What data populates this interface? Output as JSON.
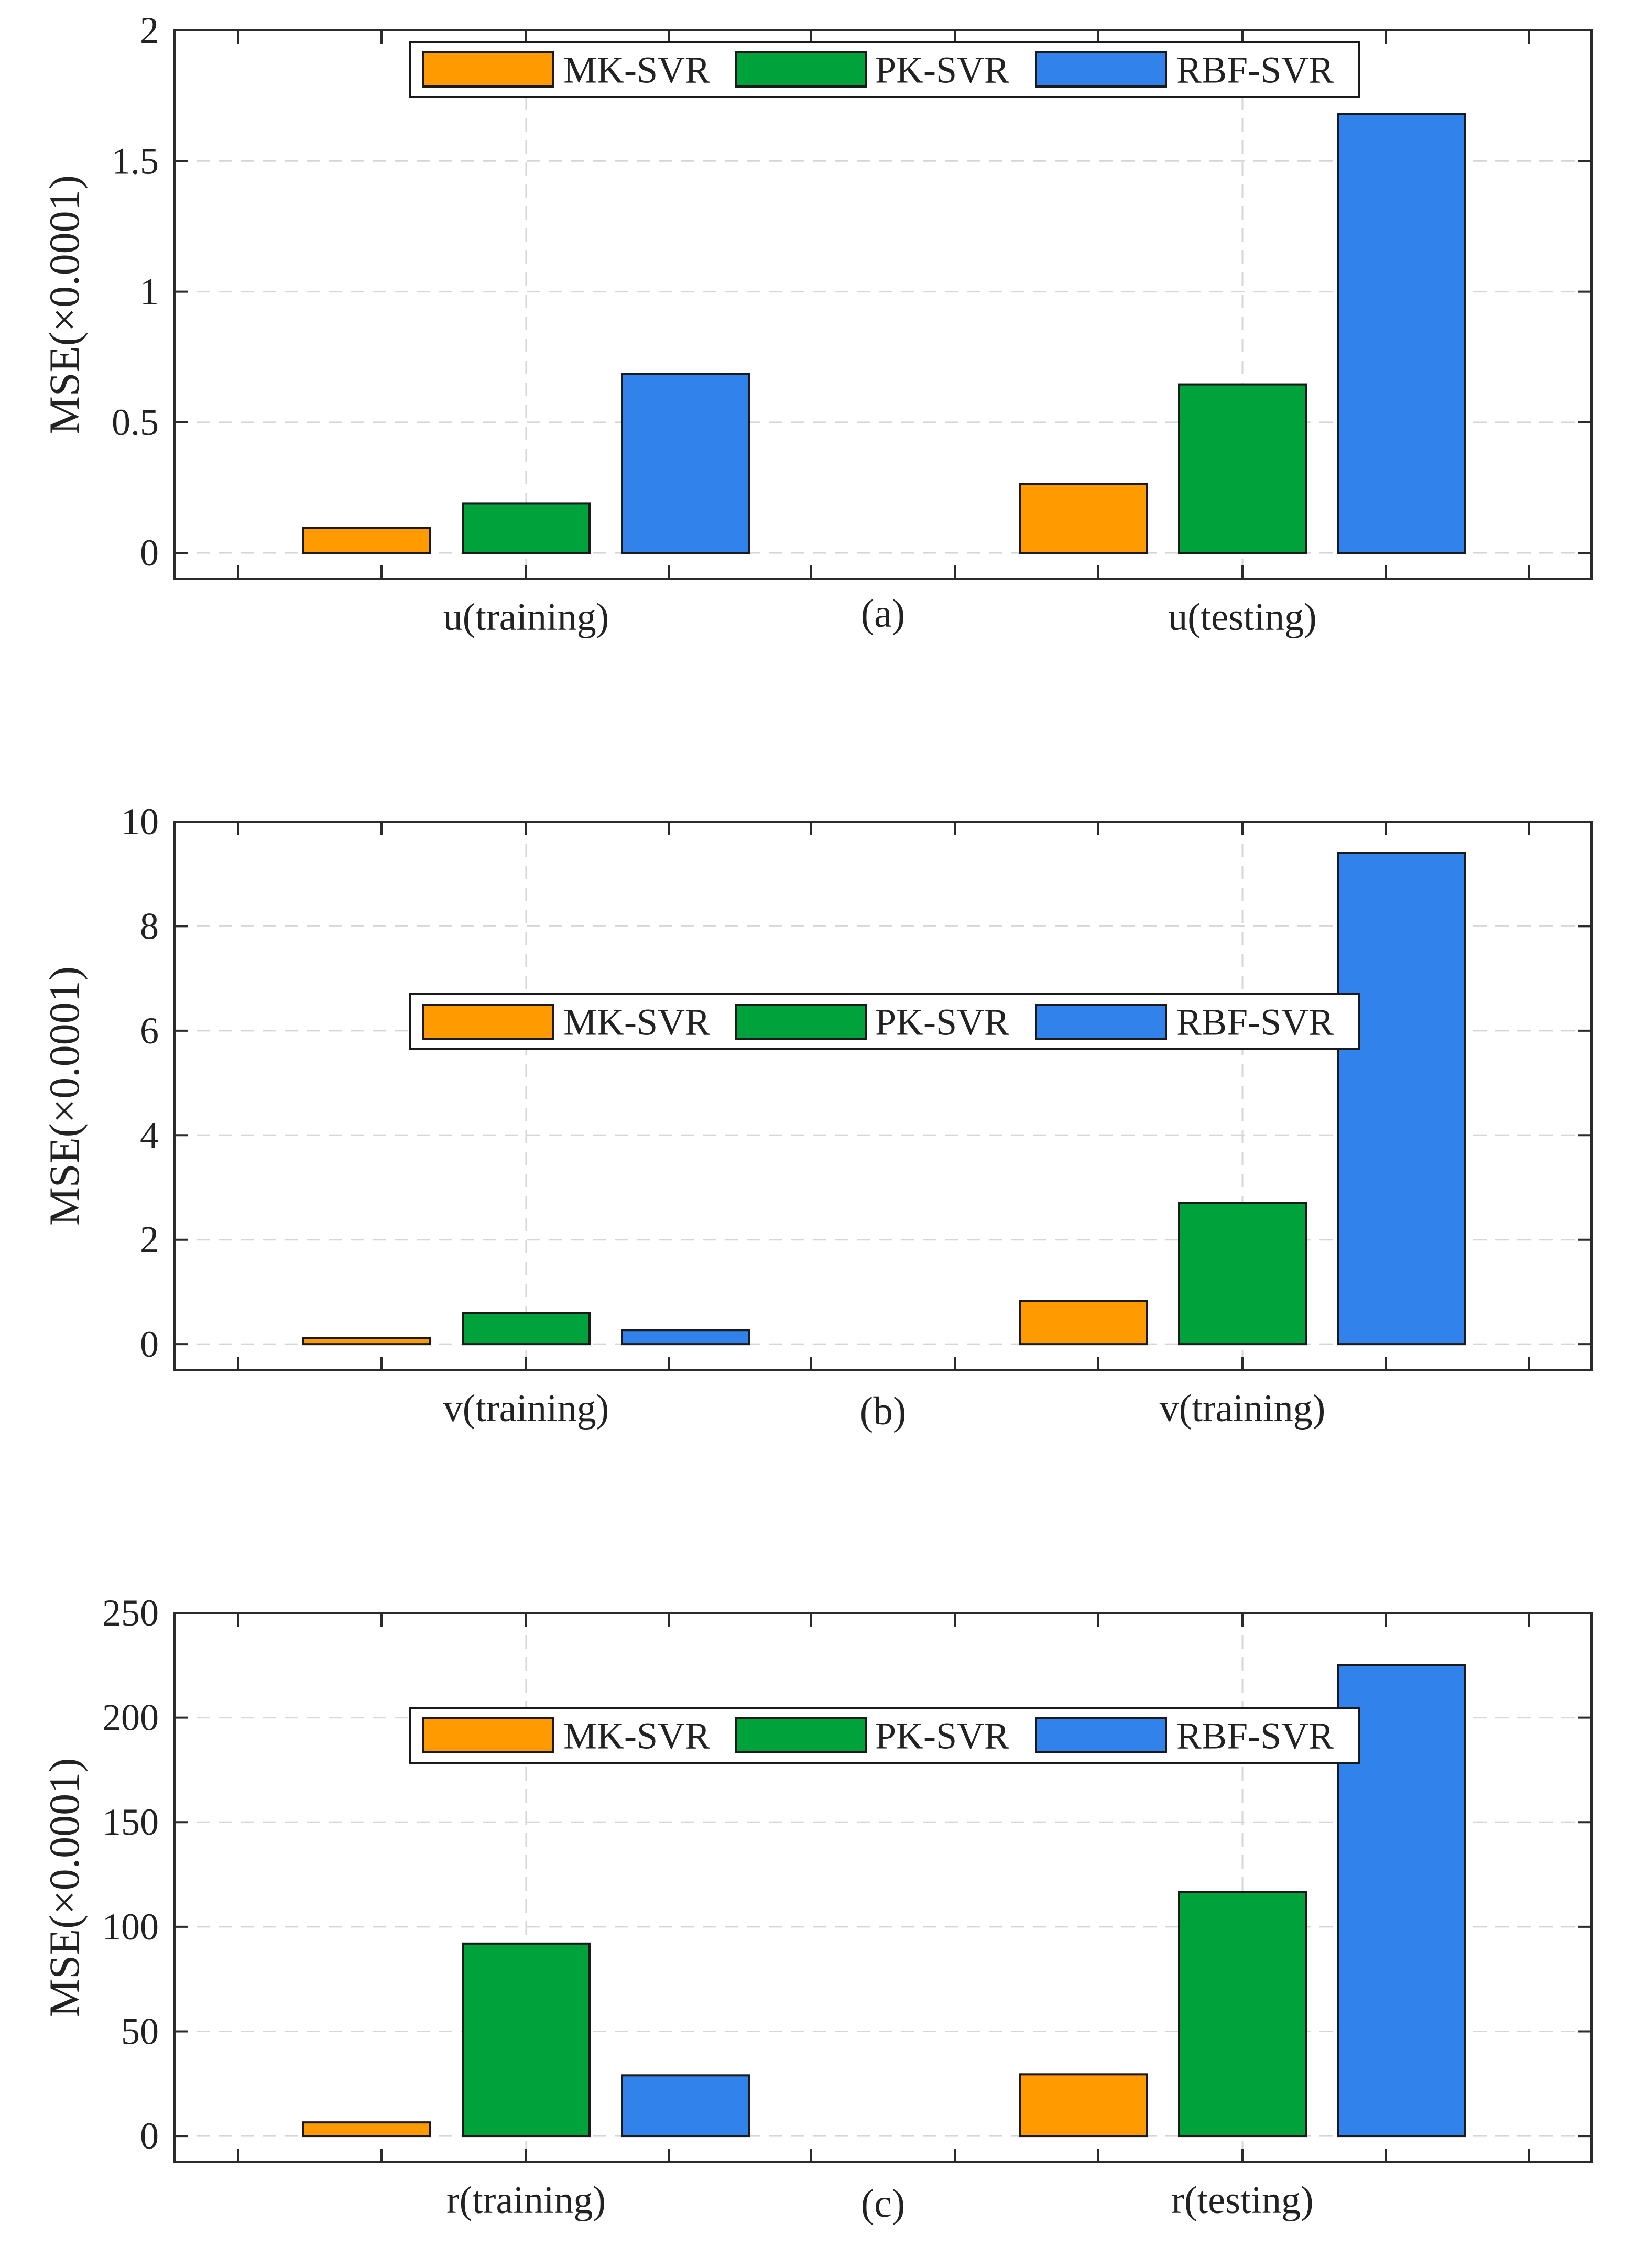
{
  "colors": {
    "MK-SVR": "#ff9a00",
    "PK-SVR": "#00a23b",
    "RBF-SVR": "#3182ea",
    "axis": "#2b2b2b",
    "grid": "#d6d6d6"
  },
  "chart_data": [
    {
      "type": "bar",
      "panel_label": "(a)",
      "categories": [
        "u(training)",
        "u(testing)"
      ],
      "series": [
        {
          "name": "MK-SVR",
          "values": [
            0.095,
            0.265
          ]
        },
        {
          "name": "PK-SVR",
          "values": [
            0.19,
            0.645
          ]
        },
        {
          "name": "RBF-SVR",
          "values": [
            0.685,
            1.68
          ]
        }
      ],
      "ylabel": "MSE(×0.0001)",
      "xlabel": "",
      "ylim": [
        -0.1,
        2
      ],
      "yticks": [
        0,
        0.5,
        1,
        1.5,
        2
      ],
      "ytick_labels": [
        "0",
        "0.5",
        "1",
        "1.5",
        "2"
      ],
      "grid": true,
      "legend": {
        "entries": [
          "MK-SVR",
          "PK-SVR",
          "RBF-SVR"
        ],
        "placement": "top-center"
      }
    },
    {
      "type": "bar",
      "panel_label": "(b)",
      "categories": [
        "v(training)",
        "v(training)"
      ],
      "series": [
        {
          "name": "MK-SVR",
          "values": [
            0.12,
            0.83
          ]
        },
        {
          "name": "PK-SVR",
          "values": [
            0.6,
            2.7
          ]
        },
        {
          "name": "RBF-SVR",
          "values": [
            0.27,
            9.4
          ]
        }
      ],
      "ylabel": "MSE(×0.0001)",
      "xlabel": "",
      "ylim": [
        -0.5,
        10
      ],
      "yticks": [
        0,
        2,
        4,
        6,
        8,
        10
      ],
      "ytick_labels": [
        "0",
        "2",
        "4",
        "6",
        "8",
        "10"
      ],
      "grid": true,
      "legend": {
        "entries": [
          "MK-SVR",
          "PK-SVR",
          "RBF-SVR"
        ],
        "placement": "center"
      }
    },
    {
      "type": "bar",
      "panel_label": "(c)",
      "categories": [
        "r(training)",
        "r(testing)"
      ],
      "series": [
        {
          "name": "MK-SVR",
          "values": [
            6.5,
            29.5
          ]
        },
        {
          "name": "PK-SVR",
          "values": [
            92,
            116.5
          ]
        },
        {
          "name": "RBF-SVR",
          "values": [
            29,
            225
          ]
        }
      ],
      "ylabel": "MSE(×0.0001)",
      "xlabel": "",
      "ylim": [
        -12.5,
        250
      ],
      "yticks": [
        0,
        50,
        100,
        150,
        200,
        250
      ],
      "ytick_labels": [
        "0",
        "50",
        "100",
        "150",
        "200",
        "250"
      ],
      "grid": true,
      "legend": {
        "entries": [
          "MK-SVR",
          "PK-SVR",
          "RBF-SVR"
        ],
        "placement": "top-center"
      }
    }
  ]
}
